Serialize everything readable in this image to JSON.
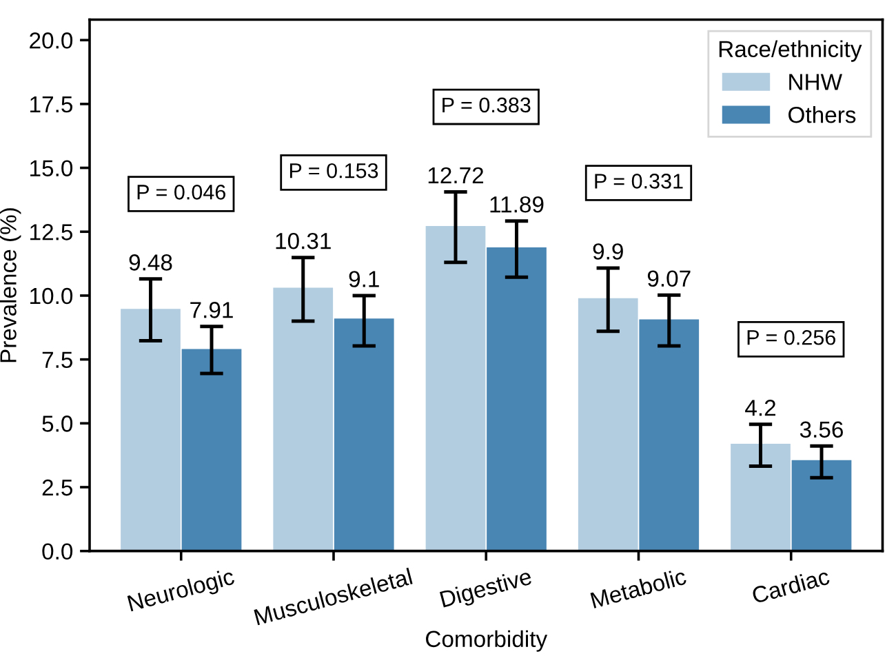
{
  "chart_data": {
    "type": "bar",
    "xlabel": "Comorbidity",
    "ylabel": "Prevalence (%)",
    "legend_title": "Race/ethnicity",
    "categories": [
      "Neurologic",
      "Musculoskeletal",
      "Digestive",
      "Metabolic",
      "Cardiac"
    ],
    "series": [
      {
        "name": "NHW",
        "color": "#b3cde0",
        "values": [
          9.48,
          10.31,
          12.72,
          9.9,
          4.2
        ],
        "errors": [
          [
            8.23,
            10.65
          ],
          [
            9.0,
            11.49
          ],
          [
            11.3,
            14.06
          ],
          [
            8.6,
            11.08
          ],
          [
            3.32,
            4.96
          ]
        ]
      },
      {
        "name": "Others",
        "color": "#4a86b4",
        "values": [
          7.91,
          9.1,
          11.89,
          9.07,
          3.56
        ],
        "errors": [
          [
            6.95,
            8.79
          ],
          [
            8.03,
            10.0
          ],
          [
            10.72,
            12.92
          ],
          [
            8.03,
            10.02
          ],
          [
            2.87,
            4.11
          ]
        ]
      }
    ],
    "data_labels": true,
    "annotations": [
      "P = 0.046",
      "P = 0.153",
      "P = 0.383",
      "P = 0.331",
      "P = 0.256"
    ],
    "ylim": [
      0,
      20.8
    ],
    "yticks": [
      {
        "value": 0,
        "label": "0.0"
      },
      {
        "value": 2.5,
        "label": "2.5"
      },
      {
        "value": 5,
        "label": "5.0"
      },
      {
        "value": 7.5,
        "label": "7.5"
      },
      {
        "value": 10,
        "label": "10.0"
      },
      {
        "value": 12.5,
        "label": "12.5"
      },
      {
        "value": 15,
        "label": "15.0"
      },
      {
        "value": 17.5,
        "label": "17.5"
      },
      {
        "value": 20,
        "label": "20.0"
      }
    ],
    "grid": false,
    "legend": "top right"
  }
}
